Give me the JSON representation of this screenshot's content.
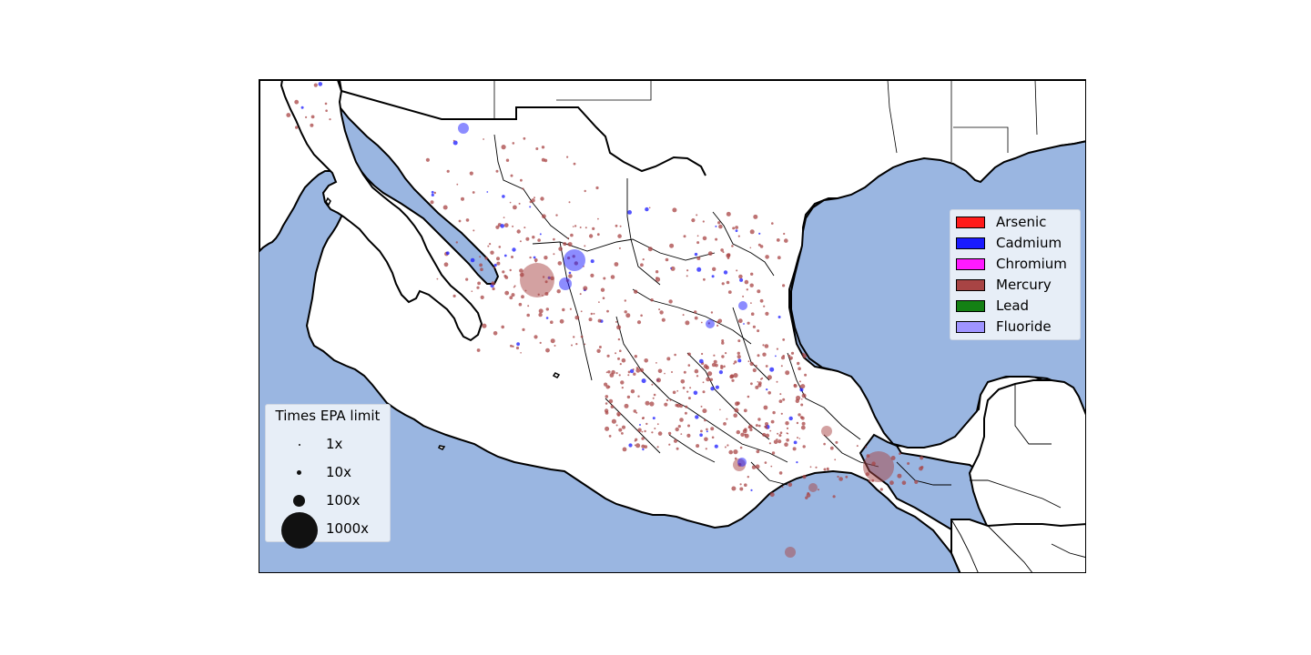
{
  "map": {
    "region": "Mexico",
    "ocean_color": "#9ab6e1",
    "land_color": "#ffffff",
    "border_color": "#000000"
  },
  "contaminant_legend": {
    "items": [
      {
        "label": "Arsenic",
        "color": "#ff1a1a"
      },
      {
        "label": "Cadmium",
        "color": "#1a1aff"
      },
      {
        "label": "Chromium",
        "color": "#ff1aff"
      },
      {
        "label": "Mercury",
        "color": "#a84444"
      },
      {
        "label": "Lead",
        "color": "#148014"
      },
      {
        "label": "Fluoride",
        "color": "#9f94ff"
      }
    ]
  },
  "size_legend": {
    "title": "Times EPA limit",
    "items": [
      {
        "label": "1x"
      },
      {
        "label": "10x"
      },
      {
        "label": "100x"
      },
      {
        "label": "1000x"
      }
    ]
  }
}
